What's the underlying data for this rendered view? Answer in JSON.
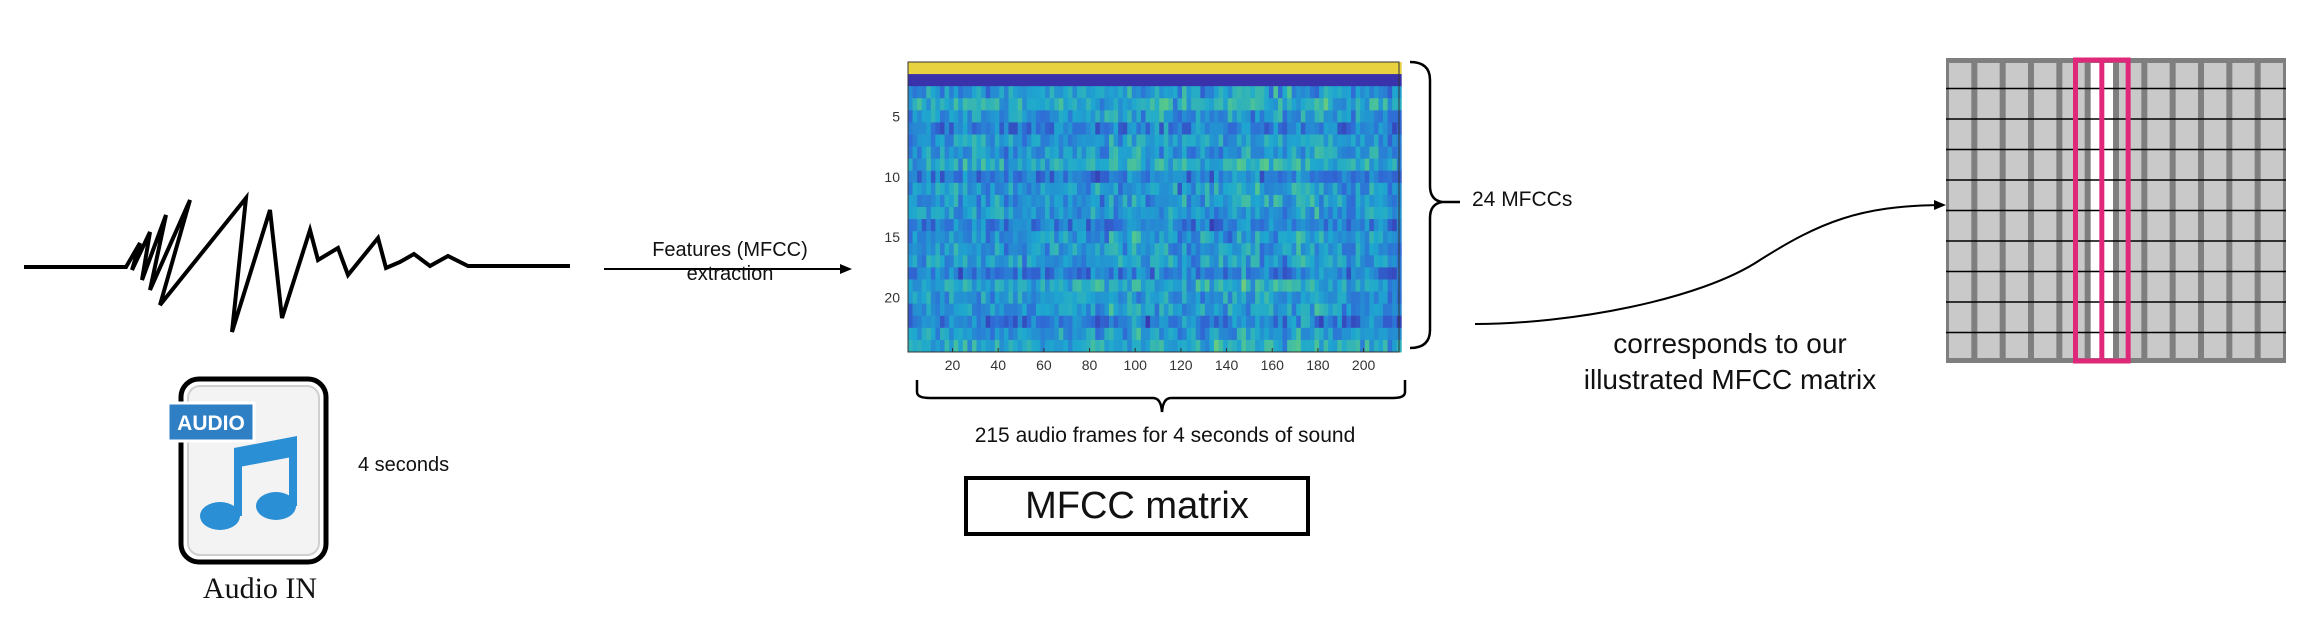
{
  "waveform": {
    "name": "waveform"
  },
  "extraction_arrow": {
    "line1": "Features (MFCC)",
    "line2": "extraction"
  },
  "audio_file": {
    "badge_text": "AUDIO",
    "caption": "Audio IN",
    "duration_label": "4 seconds"
  },
  "heatmap": {
    "y_ticks": [
      "5",
      "10",
      "15",
      "20"
    ],
    "x_ticks": [
      "20",
      "40",
      "60",
      "80",
      "100",
      "120",
      "140",
      "160",
      "180",
      "200"
    ],
    "n_rows": 24,
    "n_cols": 215,
    "colormap": [
      "#3b2aa5",
      "#2f6bd6",
      "#1ea8cf",
      "#57c98a",
      "#f5d33a"
    ]
  },
  "brace_right": {
    "label": "24 MFCCs"
  },
  "brace_bottom": {
    "label": "215 audio frames for 4 seconds of sound"
  },
  "matrix_box": {
    "label": "MFCC matrix"
  },
  "corresponds": {
    "line1": "corresponds to our",
    "line2": "illustrated MFCC matrix"
  },
  "illustrated_matrix": {
    "columns": 12,
    "rows": 10,
    "highlighted_column": 5,
    "cell_color": "#c9c9c9",
    "border_color": "#7f7f7f",
    "highlight_color": "#e0287a"
  }
}
